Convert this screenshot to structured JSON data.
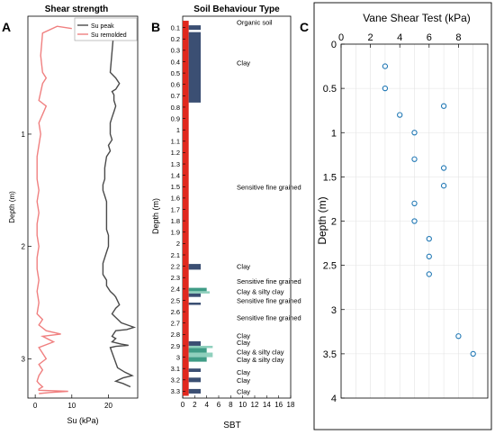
{
  "panels": {
    "a": {
      "letter": "A"
    },
    "b": {
      "letter": "B"
    },
    "c": {
      "letter": "C"
    }
  },
  "chart_data": [
    {
      "type": "line",
      "title": "Shear strength",
      "xlabel": "Su (kPa)",
      "ylabel": "Depth (m)",
      "xlim": [
        -2,
        28
      ],
      "ylim": [
        3.35,
        -0.05
      ],
      "xticks": [
        0,
        10,
        20
      ],
      "yticks": [
        1,
        2,
        3
      ],
      "legend_position": "top-right",
      "colors": {
        "su_peak": "#4a4a4a",
        "su_remolded": "#f08080"
      },
      "series": [
        {
          "name": "Su peak",
          "x": [
            23,
            22.5,
            21.5,
            21,
            21.5,
            20.5,
            22,
            23,
            22,
            21,
            21.5,
            21.5,
            22,
            21.5,
            21,
            20.5,
            20.5,
            20.5,
            21,
            20,
            20.5,
            19.5,
            19,
            19,
            18.5,
            18.5,
            19,
            19.5,
            19.5,
            19.5,
            19.5,
            19.5,
            20,
            20,
            19.5,
            19,
            18.5,
            18.5,
            18.5,
            19.5,
            19.5,
            20.5,
            21.5,
            22,
            23,
            22,
            21,
            23.5,
            27,
            25,
            22,
            21,
            22,
            21,
            23.5,
            25.5,
            22,
            20.5,
            22.5,
            24.5,
            26.5,
            24,
            22,
            24,
            26
          ],
          "y": [
            0.08,
            0.1,
            0.09,
            0.1,
            0.07,
            0.45,
            0.5,
            0.55,
            0.6,
            0.62,
            0.65,
            0.7,
            0.75,
            0.8,
            0.85,
            0.9,
            0.95,
            1.0,
            1.05,
            1.1,
            1.15,
            1.2,
            1.3,
            1.4,
            1.45,
            1.5,
            1.55,
            1.6,
            1.7,
            1.75,
            1.8,
            1.85,
            1.9,
            2.0,
            2.05,
            2.1,
            2.15,
            2.2,
            2.25,
            2.3,
            2.35,
            2.4,
            2.43,
            2.45,
            2.52,
            2.55,
            2.6,
            2.68,
            2.72,
            2.74,
            2.75,
            2.8,
            2.82,
            2.85,
            2.87,
            2.88,
            2.89,
            2.9,
            3.08,
            3.12,
            3.15,
            3.17,
            3.2,
            3.22,
            3.25
          ]
        },
        {
          "name": "Su remolded",
          "x": [
            10,
            6,
            2,
            1.5,
            2,
            3,
            2,
            1,
            3,
            1,
            1.5,
            1,
            0.5,
            0.5,
            0.5,
            1,
            0.5,
            1,
            0.5,
            0.5,
            1,
            0.5,
            0.5,
            1,
            0.5,
            1,
            0.5,
            2,
            1,
            3,
            7,
            2,
            5,
            1,
            3,
            1,
            2,
            1,
            0.5,
            1,
            2,
            1,
            1,
            9,
            4,
            1
          ],
          "y": [
            0.06,
            0.04,
            0.1,
            0.3,
            0.45,
            0.5,
            0.55,
            0.7,
            0.75,
            0.9,
            1.0,
            1.1,
            1.2,
            1.3,
            1.4,
            1.5,
            1.6,
            1.7,
            1.8,
            1.9,
            2.0,
            2.1,
            2.2,
            2.3,
            2.4,
            2.5,
            2.6,
            2.65,
            2.7,
            2.75,
            2.78,
            2.8,
            2.85,
            2.9,
            3.0,
            3.05,
            3.1,
            3.15,
            3.2,
            3.22,
            3.25,
            3.27,
            3.28,
            3.29,
            3.3,
            3.31
          ]
        }
      ]
    },
    {
      "type": "bar",
      "title": "Soil Behaviour Type",
      "xlabel": "SBT",
      "ylabel": "Depth (m)",
      "xlim": [
        0,
        18
      ],
      "xticks": [
        0,
        2,
        4,
        6,
        8,
        10,
        12,
        14,
        16,
        18
      ],
      "depth_ticks": [
        0.1,
        0.2,
        0.3,
        0.4,
        0.5,
        0.6,
        0.7,
        0.8,
        0.9,
        1,
        1.1,
        1.2,
        1.3,
        1.4,
        1.5,
        1.6,
        1.7,
        1.8,
        1.9,
        2,
        2.1,
        2.2,
        2.3,
        2.4,
        2.5,
        2.6,
        2.7,
        2.8,
        2.9,
        3,
        3.1,
        3.2,
        3.3
      ],
      "colors": {
        "base": "#e0281e",
        "clay": "#3b4f73",
        "silty_clay": "#3f9c86",
        "silty_clay_light": "#8fd0bd"
      },
      "bars": [
        {
          "d0": 0.08,
          "d1": 0.12,
          "sbt": 3
        },
        {
          "d0": 0.14,
          "d1": 0.76,
          "sbt": 3
        },
        {
          "d0": 2.18,
          "d1": 2.23,
          "sbt": 3
        },
        {
          "d0": 2.39,
          "d1": 2.42,
          "sbt": 4,
          "kind": "silty"
        },
        {
          "d0": 2.42,
          "d1": 2.44,
          "sbt": 4.5,
          "kind": "silty_light"
        },
        {
          "d0": 2.44,
          "d1": 2.47,
          "sbt": 3
        },
        {
          "d0": 2.52,
          "d1": 2.54,
          "sbt": 3
        },
        {
          "d0": 2.86,
          "d1": 2.9,
          "sbt": 3
        },
        {
          "d0": 2.9,
          "d1": 2.92,
          "sbt": 5,
          "kind": "silty_light"
        },
        {
          "d0": 2.92,
          "d1": 2.96,
          "sbt": 4,
          "kind": "silty"
        },
        {
          "d0": 2.96,
          "d1": 3.0,
          "sbt": 5,
          "kind": "silty_light"
        },
        {
          "d0": 3.0,
          "d1": 3.04,
          "sbt": 4,
          "kind": "silty"
        },
        {
          "d0": 3.1,
          "d1": 3.13,
          "sbt": 3
        },
        {
          "d0": 3.18,
          "d1": 3.22,
          "sbt": 3
        },
        {
          "d0": 3.28,
          "d1": 3.32,
          "sbt": 3
        }
      ],
      "annotations": [
        {
          "depth": 0.05,
          "label": "Organic soil"
        },
        {
          "depth": 0.41,
          "label": "Clay"
        },
        {
          "depth": 1.5,
          "label": "Sensitive fine grained"
        },
        {
          "depth": 2.2,
          "label": "Clay"
        },
        {
          "depth": 2.33,
          "label": "Sensitive fine grained"
        },
        {
          "depth": 2.42,
          "label": "Clay & silty clay"
        },
        {
          "depth": 2.5,
          "label": "Sensitive fine grained"
        },
        {
          "depth": 2.65,
          "label": "Sensitive fine grained"
        },
        {
          "depth": 2.81,
          "label": "Clay"
        },
        {
          "depth": 2.87,
          "label": "Clay"
        },
        {
          "depth": 2.95,
          "label": "Clay & silty clay"
        },
        {
          "depth": 3.02,
          "label": "Clay & silty clay"
        },
        {
          "depth": 3.13,
          "label": "Clay"
        },
        {
          "depth": 3.2,
          "label": "Clay"
        },
        {
          "depth": 3.3,
          "label": "Clay"
        }
      ]
    },
    {
      "type": "scatter",
      "title": "Vane Shear Test (kPa)",
      "xlabel": "",
      "ylabel": "Depth (m)",
      "xlim": [
        0,
        10
      ],
      "ylim": [
        4,
        0
      ],
      "xticks": [
        0,
        2,
        4,
        6,
        8
      ],
      "yticks": [
        0,
        0.5,
        1,
        1.5,
        2,
        2.5,
        3,
        3.5,
        4
      ],
      "grid": true,
      "marker_color": "#1f77b4",
      "x": [
        3,
        3,
        4,
        7,
        5,
        5,
        7,
        7,
        5,
        5,
        6,
        6,
        6,
        8,
        9
      ],
      "y": [
        0.25,
        0.5,
        0.8,
        0.7,
        1.0,
        1.3,
        1.4,
        1.6,
        1.8,
        2.0,
        2.2,
        2.4,
        2.6,
        3.3,
        3.5
      ]
    }
  ]
}
